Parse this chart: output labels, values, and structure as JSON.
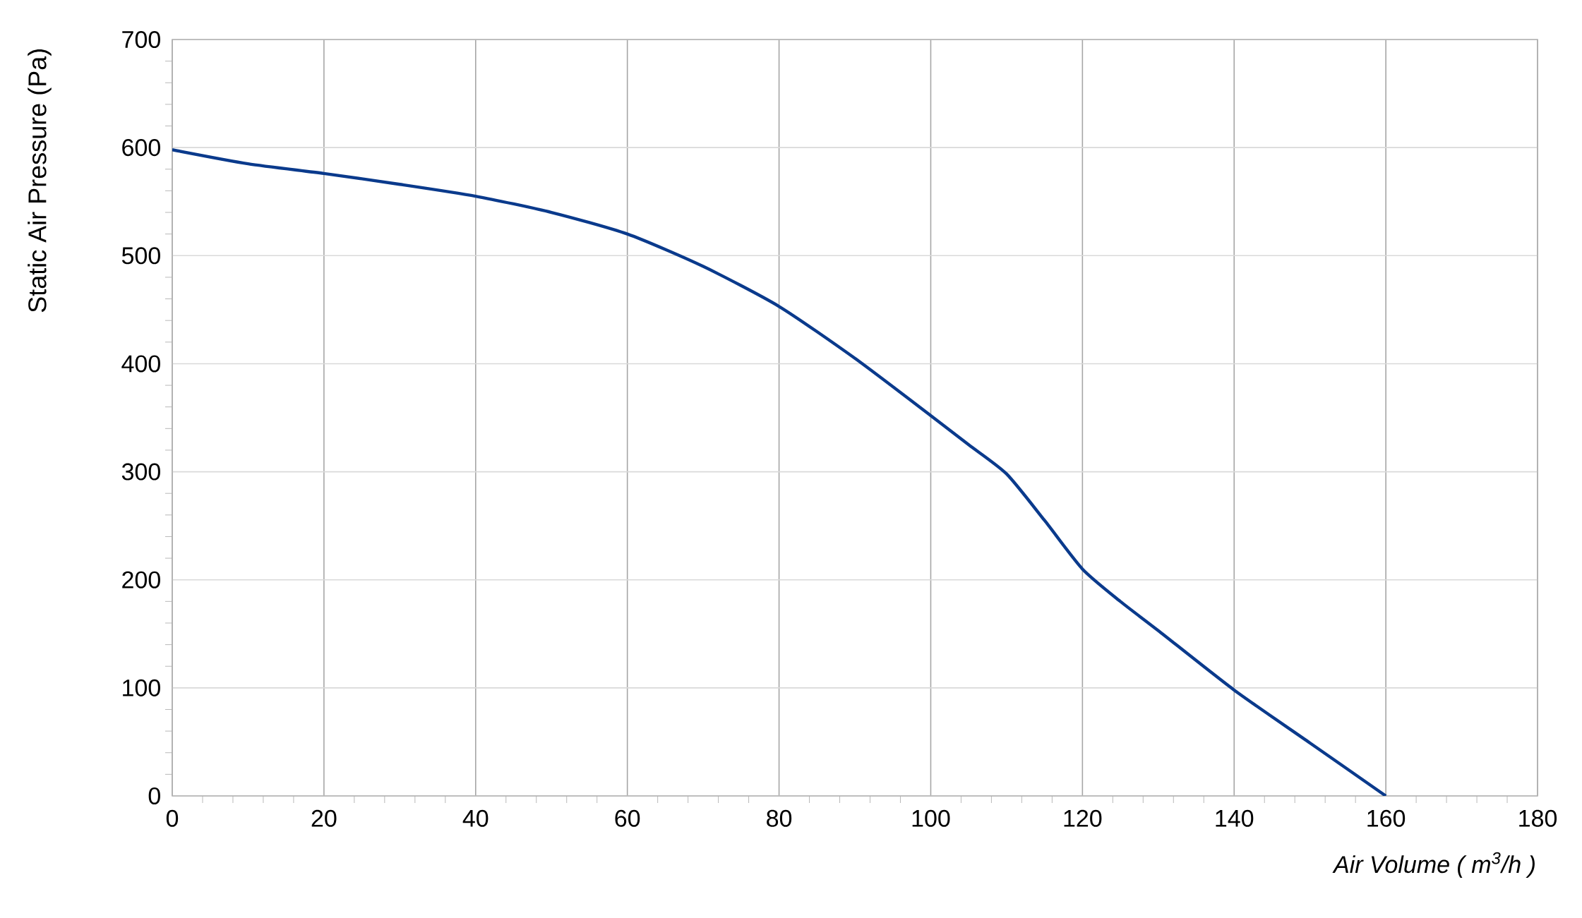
{
  "chart_data": {
    "type": "line",
    "xlabel": "Air Volume ( m$^{3}$/h )",
    "ylabel": "Static Air Pressure  (Pa)",
    "x": [
      0,
      10,
      20,
      30,
      40,
      50,
      60,
      70,
      80,
      90,
      100,
      105,
      110,
      115,
      120,
      125,
      130,
      140,
      150,
      160
    ],
    "values": [
      598,
      585,
      576,
      566,
      555,
      540,
      520,
      490,
      453,
      405,
      352,
      325,
      298,
      255,
      210,
      180,
      153,
      98,
      49,
      0
    ],
    "color": "#0a3a8c",
    "line_style": "solid",
    "xlim": [
      0,
      180
    ],
    "ylim": [
      0,
      700
    ],
    "xticks": [
      0,
      20,
      40,
      60,
      80,
      100,
      120,
      140,
      160,
      180
    ],
    "yticks": [
      0,
      100,
      200,
      300,
      400,
      500,
      600,
      700
    ],
    "grid": true
  }
}
